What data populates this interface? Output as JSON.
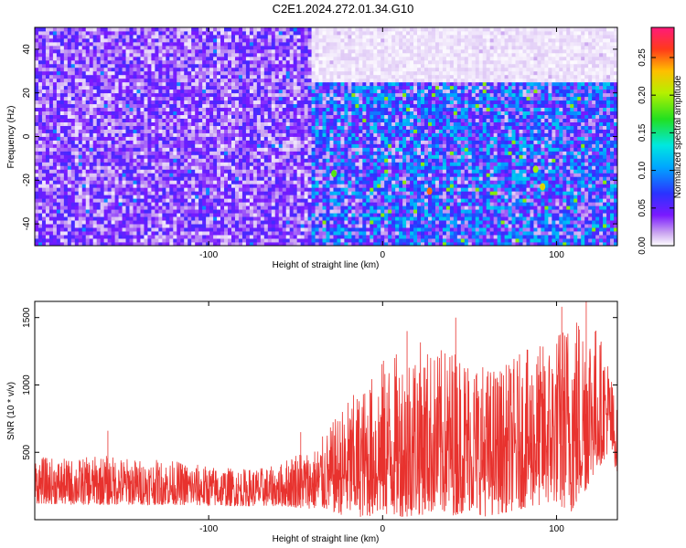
{
  "figure": {
    "title": "C2E1.2024.272.01.34.G10"
  },
  "chart_data": [
    {
      "type": "heatmap",
      "title": "C2E1.2024.272.01.34.G10",
      "xlabel": "Height of straight line (km)",
      "ylabel": "Frequency (Hz)",
      "xlim": [
        -200,
        135
      ],
      "ylim": [
        -50,
        50
      ],
      "x_ticks": [
        -100,
        0,
        100
      ],
      "y_ticks": [
        -40,
        -20,
        0,
        20,
        40
      ],
      "colorbar": {
        "label": "Normalized spectral amplitude",
        "range": [
          0,
          0.29
        ],
        "ticks": [
          0.0,
          0.05,
          0.1,
          0.15,
          0.2,
          0.25
        ]
      },
      "regions": [
        {
          "x": [
            -200,
            -40
          ],
          "y": [
            -50,
            50
          ],
          "mean_amplitude": 0.03
        },
        {
          "x": [
            -40,
            135
          ],
          "y": [
            -50,
            25
          ],
          "mean_amplitude": 0.06
        },
        {
          "x": [
            -40,
            135
          ],
          "y": [
            25,
            50
          ],
          "mean_amplitude": 0.005
        }
      ],
      "peaks": [
        {
          "x": 27,
          "y": -25,
          "amplitude": 0.25
        },
        {
          "x": 92,
          "y": -23,
          "amplitude": 0.22
        },
        {
          "x": 88,
          "y": -15,
          "amplitude": 0.2
        },
        {
          "x": -28,
          "y": -17,
          "amplitude": 0.18
        }
      ]
    },
    {
      "type": "line",
      "xlabel": "Height of straight line (km)",
      "ylabel": "SNR (10 * v/v)",
      "xlim": [
        -200,
        135
      ],
      "ylim": [
        0,
        1620
      ],
      "x_ticks": [
        -100,
        0,
        100
      ],
      "y_ticks": [
        500,
        1000,
        1500
      ],
      "series": [
        {
          "color": "#e8322e",
          "envelope": {
            "x": [
              -200,
              -180,
              -160,
              -140,
              -120,
              -100,
              -80,
              -60,
              -50,
              -40,
              -30,
              -20,
              -10,
              0,
              10,
              20,
              30,
              40,
              50,
              60,
              70,
              80,
              90,
              100,
              110,
              120,
              130,
              135
            ],
            "lower": [
              120,
              110,
              110,
              110,
              110,
              100,
              100,
              100,
              90,
              80,
              60,
              20,
              20,
              30,
              20,
              30,
              50,
              30,
              60,
              20,
              50,
              80,
              100,
              120,
              40,
              300,
              500,
              350
            ],
            "upper": [
              470,
              450,
              480,
              450,
              440,
              400,
              380,
              400,
              520,
              520,
              700,
              900,
              1000,
              1200,
              1250,
              1350,
              1250,
              1300,
              1250,
              1150,
              1150,
              1250,
              1300,
              1400,
              1600,
              1550,
              1200,
              800
            ]
          },
          "peaks": [
            {
              "x": -158,
              "y": 660
            },
            {
              "x": -47,
              "y": 650
            },
            {
              "x": 14,
              "y": 1400
            },
            {
              "x": 42,
              "y": 1500
            },
            {
              "x": 103,
              "y": 1580
            },
            {
              "x": 117,
              "y": 1620
            }
          ]
        }
      ]
    }
  ]
}
